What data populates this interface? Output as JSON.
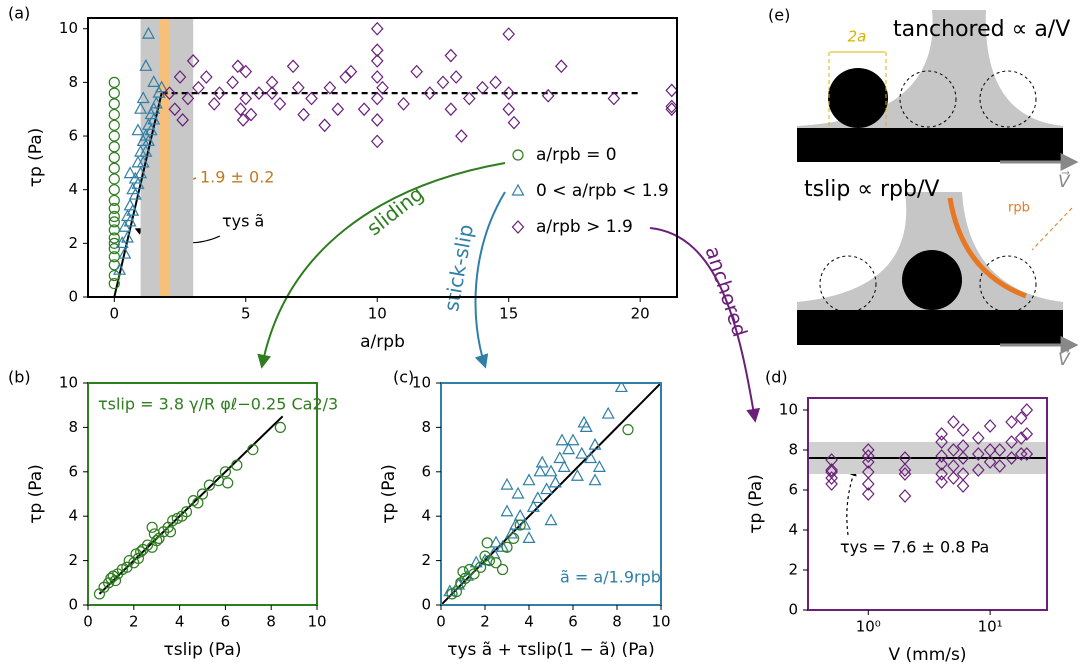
{
  "chart_data": [
    {
      "type": "scatter",
      "panel": "(a)",
      "xlabel": "a/rpb",
      "ylabel": "τp (Pa)",
      "xlim": [
        -1,
        21.4
      ],
      "ylim": [
        0,
        10.4
      ],
      "xticks": [
        0,
        5,
        10,
        15,
        20
      ],
      "yticks": [
        0,
        2,
        4,
        6,
        8,
        10
      ],
      "frame_color": "#000000",
      "legend": true,
      "bands": [
        {
          "x": [
            1,
            3
          ],
          "color": "#c8c8c8"
        },
        {
          "x": [
            1.7,
            2.1
          ],
          "color": "#f7c07a"
        }
      ],
      "lines": [
        {
          "x": [
            0,
            1.8
          ],
          "y": [
            0,
            7.6
          ],
          "color": "#000000",
          "dashed": false
        },
        {
          "x": [
            1.8,
            20
          ],
          "y": [
            7.6,
            7.6
          ],
          "color": "#000000",
          "dashed": true
        }
      ],
      "annotations": [
        "1.9 ± 0.2",
        "τys ã"
      ],
      "series": [
        {
          "name": "a/rpb = 0",
          "marker": "circle",
          "color": "#2e7d1f",
          "x": [
            0,
            0,
            0,
            0,
            0,
            0,
            0,
            0,
            0,
            0,
            0,
            0,
            0,
            0,
            0,
            0,
            0,
            0,
            0,
            0,
            0,
            0,
            0
          ],
          "y": [
            0.5,
            0.8,
            1.2,
            1.5,
            1.8,
            2.0,
            2.2,
            2.5,
            2.8,
            3.0,
            3.3,
            3.6,
            4.0,
            4.4,
            4.8,
            5.2,
            5.6,
            6.0,
            6.4,
            6.8,
            7.2,
            7.6,
            8.0
          ]
        },
        {
          "name": "0 < a/rpb < 1.9",
          "marker": "triangle",
          "color": "#2f7fa6",
          "x": [
            0.2,
            0.3,
            0.4,
            0.4,
            0.5,
            0.5,
            0.6,
            0.6,
            0.7,
            0.7,
            0.8,
            0.8,
            0.9,
            0.9,
            1.0,
            1.0,
            1.1,
            1.1,
            1.2,
            1.2,
            1.3,
            1.3,
            1.4,
            1.4,
            1.5,
            1.5,
            1.6,
            1.7,
            1.8,
            1.2,
            1.0,
            0.9,
            1.3,
            1.5,
            0.6,
            1.1
          ],
          "y": [
            1.0,
            2.0,
            1.6,
            2.6,
            3.0,
            2.2,
            3.4,
            2.8,
            4.0,
            3.2,
            4.4,
            3.8,
            5.0,
            4.2,
            5.4,
            4.6,
            5.8,
            5.0,
            6.0,
            5.4,
            6.4,
            5.8,
            6.8,
            6.2,
            7.0,
            6.6,
            7.2,
            7.6,
            7.8,
            8.6,
            7.0,
            6.2,
            9.8,
            8.0,
            4.6,
            7.4
          ]
        },
        {
          "name": "a/rpb > 1.9",
          "marker": "diamond",
          "color": "#6a1f7a",
          "x": [
            2.1,
            2.3,
            2.5,
            2.6,
            2.8,
            3.0,
            3.2,
            3.5,
            3.8,
            4.0,
            4.5,
            4.7,
            4.8,
            4.9,
            5.0,
            5.0,
            5.2,
            5.5,
            6.0,
            6.3,
            6.8,
            7.0,
            7.2,
            7.5,
            8.0,
            8.2,
            8.5,
            8.8,
            9.0,
            9.5,
            10.0,
            10.0,
            10.0,
            10.0,
            10.0,
            10.0,
            10.2,
            11.0,
            11.5,
            12.0,
            12.5,
            12.8,
            12.8,
            13.0,
            13.5,
            14.0,
            14.5,
            15.0,
            15.2,
            17.0,
            19.0,
            21.2,
            21.2,
            21.2,
            16.5,
            13.2,
            15.0,
            15.0,
            10.0,
            6.0
          ],
          "y": [
            7.6,
            7.0,
            8.2,
            6.6,
            7.4,
            8.8,
            7.8,
            8.2,
            7.2,
            7.6,
            8.0,
            8.6,
            7.0,
            6.6,
            8.4,
            7.4,
            6.8,
            7.6,
            8.0,
            7.2,
            8.6,
            7.8,
            6.8,
            7.4,
            6.4,
            7.8,
            7.0,
            8.2,
            8.4,
            7.0,
            10.0,
            9.2,
            8.2,
            7.4,
            6.6,
            5.8,
            7.8,
            7.2,
            8.4,
            7.6,
            8.0,
            9.0,
            7.0,
            8.2,
            7.4,
            7.8,
            8.0,
            9.8,
            6.5,
            8.6,
            7.4,
            7.7,
            7.0,
            7.1,
            7.5,
            6.0,
            7.0,
            7.6,
            8.8,
            7.6
          ]
        }
      ]
    },
    {
      "type": "scatter",
      "panel": "(b)",
      "xlabel": "τslip (Pa)",
      "ylabel": "τp (Pa)",
      "xlim": [
        0,
        10
      ],
      "ylim": [
        0,
        10
      ],
      "xticks": [
        0,
        2,
        4,
        6,
        8,
        10
      ],
      "yticks": [
        0,
        2,
        4,
        6,
        8,
        10
      ],
      "frame_color": "#2e7d1f",
      "legend": false,
      "bands": [],
      "lines": [
        {
          "x": [
            0.5,
            8.5
          ],
          "y": [
            0.5,
            8.5
          ],
          "color": "#000000",
          "dashed": false
        }
      ],
      "annotations": [
        "τslip = 3.8 γ/R φℓ−0.25 Ca2/3"
      ],
      "series": [
        {
          "name": "a/rpb = 0",
          "marker": "circle",
          "color": "#2e7d1f",
          "x": [
            0.5,
            0.7,
            0.9,
            1.0,
            1.2,
            1.3,
            1.5,
            1.7,
            1.8,
            2.0,
            2.1,
            2.2,
            2.4,
            2.6,
            2.8,
            2.9,
            3.0,
            3.1,
            3.3,
            3.5,
            3.7,
            3.9,
            4.1,
            4.3,
            4.6,
            4.8,
            5.0,
            5.3,
            5.7,
            6.0,
            6.1,
            6.5,
            7.2,
            8.4,
            2.8,
            3.6,
            2.3,
            1.1
          ],
          "y": [
            0.5,
            0.8,
            1.0,
            1.2,
            1.1,
            1.4,
            1.6,
            1.7,
            2.0,
            1.9,
            2.3,
            2.1,
            2.5,
            2.7,
            2.6,
            3.2,
            2.9,
            3.0,
            3.3,
            3.5,
            3.8,
            3.9,
            4.0,
            4.2,
            4.7,
            4.6,
            5.0,
            5.4,
            5.6,
            6.0,
            5.5,
            6.3,
            7.0,
            8.0,
            3.5,
            3.3,
            2.4,
            1.3
          ]
        }
      ]
    },
    {
      "type": "scatter",
      "panel": "(c)",
      "xlabel": "τys ã + τslip(1 − ã) (Pa)",
      "ylabel": "τp (Pa)",
      "xlim": [
        0,
        10
      ],
      "ylim": [
        0,
        10
      ],
      "xticks": [
        0,
        2,
        4,
        6,
        8,
        10
      ],
      "yticks": [
        0,
        2,
        4,
        6,
        8,
        10
      ],
      "frame_color": "#2f7fa6",
      "legend": false,
      "bands": [],
      "lines": [
        {
          "x": [
            0,
            10
          ],
          "y": [
            0,
            10
          ],
          "color": "#000000",
          "dashed": false
        }
      ],
      "annotations": [
        "ã = a/1.9rpb"
      ],
      "series": [
        {
          "name": "0 < a/rpb < 1.9",
          "marker": "triangle",
          "color": "#2f7fa6",
          "x": [
            0.4,
            0.8,
            1.2,
            1.6,
            2.0,
            2.4,
            2.8,
            3.0,
            3.2,
            3.4,
            3.6,
            3.8,
            4.0,
            4.2,
            4.4,
            4.6,
            4.8,
            5.0,
            5.2,
            5.4,
            5.6,
            5.8,
            6.0,
            6.2,
            6.4,
            6.6,
            6.8,
            7.0,
            7.2,
            7.6,
            8.2,
            3.0,
            3.5,
            4.5,
            5.5,
            6.5,
            7.0,
            5.0,
            4.0,
            2.5
          ],
          "y": [
            0.6,
            0.9,
            1.3,
            1.9,
            2.0,
            2.3,
            2.6,
            5.4,
            3.2,
            3.6,
            4.0,
            3.6,
            5.6,
            4.4,
            4.8,
            6.4,
            5.2,
            6.0,
            5.5,
            6.6,
            6.2,
            7.0,
            7.4,
            5.8,
            6.8,
            8.0,
            6.6,
            7.2,
            6.2,
            8.6,
            9.8,
            4.2,
            5.0,
            6.0,
            7.4,
            8.2,
            5.6,
            3.8,
            3.0,
            2.8
          ]
        },
        {
          "name": "a/rpb = 0",
          "marker": "circle",
          "color": "#2e7d1f",
          "x": [
            0.5,
            0.7,
            0.9,
            1.1,
            1.3,
            1.5,
            1.8,
            2.0,
            2.2,
            2.5,
            2.8,
            3.0,
            3.3,
            3.6,
            8.5,
            1.0,
            2.1
          ],
          "y": [
            0.5,
            0.6,
            1.0,
            1.2,
            1.6,
            1.4,
            1.7,
            2.2,
            2.0,
            1.9,
            1.6,
            2.6,
            3.0,
            3.6,
            7.9,
            1.5,
            2.8
          ]
        }
      ]
    },
    {
      "type": "scatter",
      "panel": "(d)",
      "xlabel": "V (mm/s)",
      "ylabel": "τp (Pa)",
      "xlog": true,
      "xlim": [
        0.32,
        29.3
      ],
      "ylim": [
        0,
        10.6
      ],
      "xticks": [
        {
          "value": 1,
          "label": "10⁰"
        },
        {
          "value": 10,
          "label": "10¹"
        }
      ],
      "yticks": [
        0,
        2,
        4,
        6,
        8,
        10
      ],
      "frame_color": "#6a1f7a",
      "legend": false,
      "bands": [
        {
          "y": [
            6.8,
            8.4
          ],
          "color": "#d0d0d0"
        }
      ],
      "lines": [
        {
          "x": [
            0.32,
            29.3
          ],
          "y": [
            7.6,
            7.6
          ],
          "color": "#000000",
          "dashed": false
        }
      ],
      "annotations": [
        "τys = 7.6 ± 0.8 Pa"
      ],
      "series": [
        {
          "name": "a/rpb > 1.9",
          "marker": "diamond",
          "color": "#6a1f7a",
          "x": [
            0.5,
            0.5,
            0.5,
            0.5,
            0.5,
            1,
            1,
            1,
            1,
            1,
            1,
            2,
            2,
            2,
            2,
            4,
            4,
            4,
            4,
            4,
            4,
            5,
            5,
            5,
            5,
            6,
            6,
            6,
            6,
            6,
            8,
            8,
            8,
            10,
            10,
            10,
            12,
            12,
            15,
            15,
            15,
            18,
            18,
            18,
            20,
            20,
            20
          ],
          "y": [
            7.5,
            7.0,
            6.6,
            6.3,
            6.9,
            8.0,
            7.4,
            6.9,
            6.3,
            5.8,
            7.7,
            7.6,
            7.0,
            6.8,
            5.7,
            8.4,
            7.7,
            7.3,
            6.8,
            6.4,
            8.8,
            9.4,
            8.0,
            7.2,
            6.6,
            9.0,
            8.2,
            7.6,
            6.8,
            6.2,
            8.6,
            7.8,
            7.0,
            9.2,
            8.0,
            7.4,
            8.0,
            7.2,
            9.4,
            8.4,
            7.6,
            9.6,
            8.6,
            7.8,
            10.0,
            8.8,
            7.8
          ]
        }
      ]
    }
  ],
  "arrow_labels": [
    "sliding",
    "stick-slip",
    "anchored"
  ],
  "schematic": {
    "panel": "(e)",
    "top_formula": "tanchored ∝ a/V",
    "width_label": "2a",
    "bottom_formula": "tslip ∝ rpb/V",
    "radius_label": "rpb",
    "velocity_labels": [
      "V⃗",
      "V⃗"
    ]
  }
}
